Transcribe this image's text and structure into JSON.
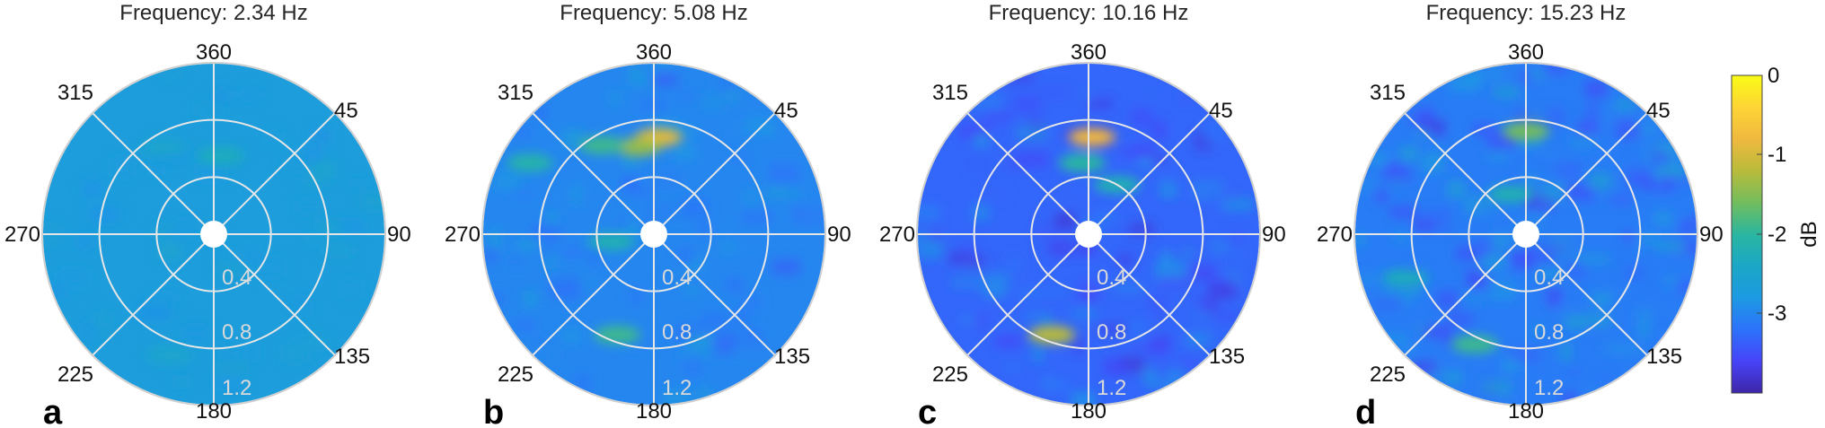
{
  "chart_data": [
    {
      "type": "heatmap",
      "panel_letter": "a",
      "title": "Frequency:  2.34 Hz",
      "angular_ticks": [
        "360",
        "45",
        "90",
        "135",
        "180",
        "225",
        "270",
        "315"
      ],
      "radial_ticks": [
        "0.4",
        "0.8",
        "1.2"
      ],
      "radial_values": [
        0.4,
        0.8,
        1.2
      ],
      "rlim": [
        0,
        1.2
      ],
      "background_level_db": -2.7,
      "hotspots": [
        {
          "angle": 5,
          "r": 0.55,
          "db": -2.3
        },
        {
          "angle": 330,
          "r": 0.7,
          "db": -2.5
        },
        {
          "angle": 200,
          "r": 0.9,
          "db": -2.5
        }
      ]
    },
    {
      "type": "heatmap",
      "panel_letter": "b",
      "title": "Frequency:  5.08 Hz",
      "angular_ticks": [
        "360",
        "45",
        "90",
        "135",
        "180",
        "225",
        "270",
        "315"
      ],
      "radial_ticks": [
        "0.4",
        "0.8",
        "1.2"
      ],
      "radial_values": [
        0.4,
        0.8,
        1.2
      ],
      "rlim": [
        0,
        1.2
      ],
      "background_level_db": -3.0,
      "hotspots": [
        {
          "angle": 3,
          "r": 0.68,
          "db": -0.9
        },
        {
          "angle": 350,
          "r": 0.62,
          "db": -1.4
        },
        {
          "angle": 330,
          "r": 0.72,
          "db": -1.9
        },
        {
          "angle": 200,
          "r": 0.75,
          "db": -1.9
        },
        {
          "angle": 300,
          "r": 1.0,
          "db": -2.1
        },
        {
          "angle": 260,
          "r": 0.3,
          "db": -2.2
        }
      ]
    },
    {
      "type": "heatmap",
      "panel_letter": "c",
      "title": "Frequency: 10.16 Hz",
      "angular_ticks": [
        "360",
        "45",
        "90",
        "135",
        "180",
        "225",
        "270",
        "315"
      ],
      "radial_ticks": [
        "0.4",
        "0.8",
        "1.2"
      ],
      "radial_values": [
        0.4,
        0.8,
        1.2
      ],
      "rlim": [
        0,
        1.2
      ],
      "background_level_db": -3.3,
      "hotspots": [
        {
          "angle": 2,
          "r": 0.68,
          "db": -0.8
        },
        {
          "angle": 200,
          "r": 0.75,
          "db": -1.2
        },
        {
          "angle": 355,
          "r": 0.5,
          "db": -2.0
        },
        {
          "angle": 30,
          "r": 0.4,
          "db": -2.2
        }
      ]
    },
    {
      "type": "heatmap",
      "panel_letter": "d",
      "title": "Frequency: 15.23 Hz",
      "angular_ticks": [
        "360",
        "45",
        "90",
        "135",
        "180",
        "225",
        "270",
        "315"
      ],
      "radial_ticks": [
        "0.4",
        "0.8",
        "1.2"
      ],
      "radial_values": [
        0.4,
        0.8,
        1.2
      ],
      "rlim": [
        0,
        1.2
      ],
      "background_level_db": -3.1,
      "hotspots": [
        {
          "angle": 0,
          "r": 0.72,
          "db": -1.6
        },
        {
          "angle": 205,
          "r": 0.85,
          "db": -1.9
        },
        {
          "angle": 340,
          "r": 0.3,
          "db": -2.2
        },
        {
          "angle": 250,
          "r": 0.9,
          "db": -2.3
        }
      ]
    }
  ],
  "colorbar": {
    "label": "dB",
    "ticks": [
      "0",
      "-1",
      "-2",
      "-3"
    ],
    "tick_values": [
      0,
      -1,
      -2,
      -3
    ],
    "range": [
      -4,
      0
    ],
    "colormap": [
      "#3e26a8",
      "#4743f8",
      "#2c72fb",
      "#1d9ae2",
      "#1ba7c6",
      "#2ab6a0",
      "#73bd5d",
      "#b9bb3b",
      "#f0b93f",
      "#fdd535",
      "#f9fb15"
    ]
  }
}
